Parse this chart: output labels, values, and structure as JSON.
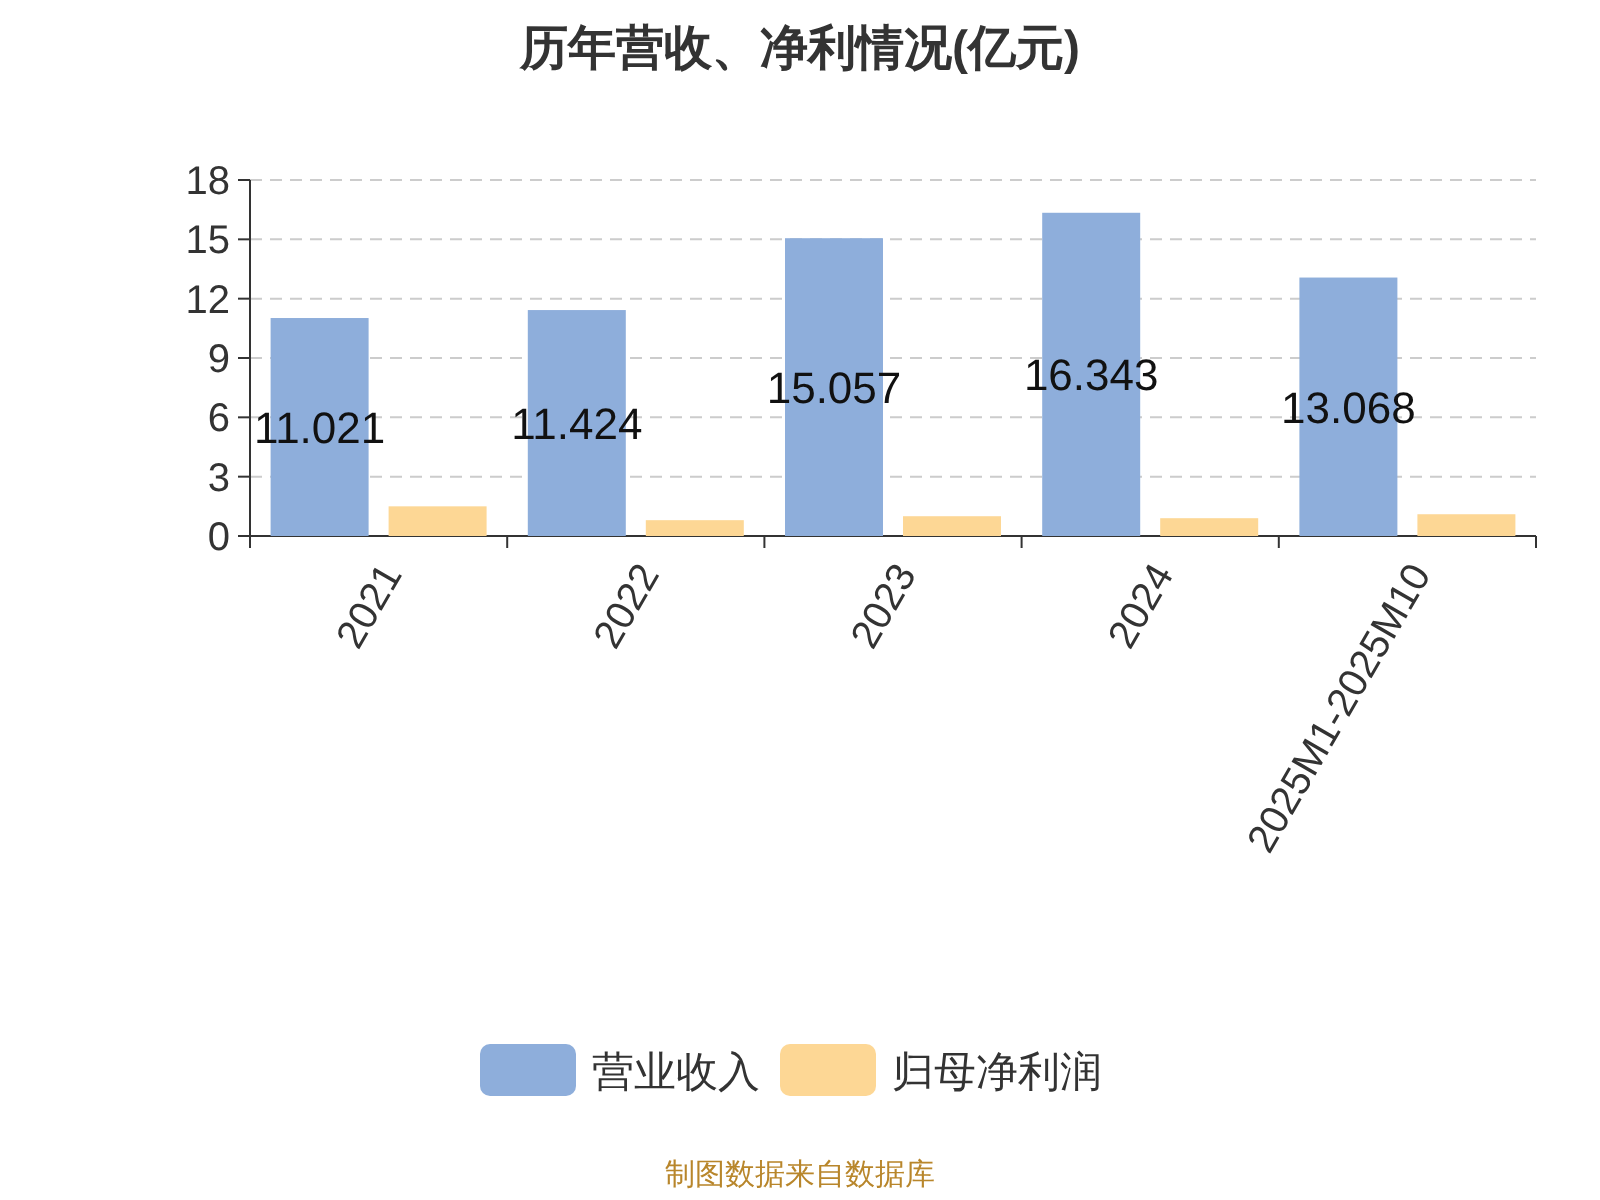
{
  "chart_data": {
    "type": "bar",
    "title": "历年营收、净利情况(亿元)",
    "categories": [
      "2021",
      "2022",
      "2023",
      "2024",
      "2025M1-2025M10"
    ],
    "series": [
      {
        "name": "营业收入",
        "color": "#8eaedb",
        "values": [
          11.021,
          11.424,
          15.057,
          16.343,
          13.068
        ],
        "value_labels": [
          "11.021",
          "11.424",
          "15.057",
          "16.343",
          "13.068"
        ]
      },
      {
        "name": "归母净利润",
        "color": "#fdd795",
        "values": [
          1.5,
          0.8,
          1.0,
          0.9,
          1.1
        ]
      }
    ],
    "ylim": [
      0,
      18
    ],
    "yticks": [
      0,
      3,
      6,
      9,
      12,
      15,
      18
    ],
    "grid": "y",
    "legend": "bottom",
    "annotations": [
      "制图数据来自数据库"
    ]
  }
}
